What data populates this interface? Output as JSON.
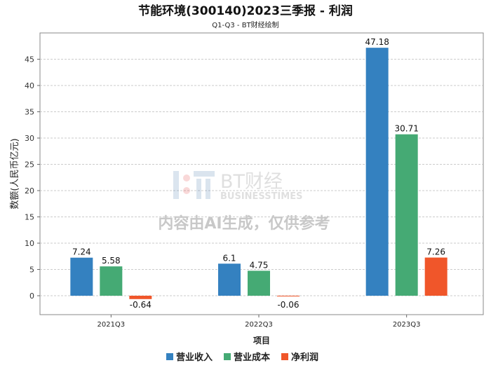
{
  "chart_data": {
    "type": "bar",
    "title": "节能环境(300140)2023三季报 - 利润",
    "subtitle": "Q1-Q3 - BT财经绘制",
    "xlabel": "项目",
    "ylabel": "数额(人民币亿元)",
    "categories": [
      "2021Q3",
      "2022Q3",
      "2023Q3"
    ],
    "series": [
      {
        "name": "营业收入",
        "color": "#3481c0",
        "values": [
          7.24,
          6.1,
          47.18
        ],
        "labels": [
          "7.24",
          "6.1",
          "47.18"
        ]
      },
      {
        "name": "营业成本",
        "color": "#45aa74",
        "values": [
          5.58,
          4.75,
          30.71
        ],
        "labels": [
          "5.58",
          "4.75",
          "30.71"
        ]
      },
      {
        "name": "净利润",
        "color": "#f0562a",
        "values": [
          -0.64,
          -0.06,
          7.26
        ],
        "labels": [
          "-0.64",
          "-0.06",
          "7.26"
        ]
      }
    ],
    "ylim": [
      -3.6,
      50
    ],
    "yticks": [
      0,
      5,
      10,
      15,
      20,
      25,
      30,
      35,
      40,
      45
    ],
    "grid": true,
    "legend": "bottom-center"
  },
  "watermark": {
    "brand": "BT财经",
    "brand_en": "BUSINESSTIMES",
    "notice": "内容由AI生成，仅供参考"
  }
}
